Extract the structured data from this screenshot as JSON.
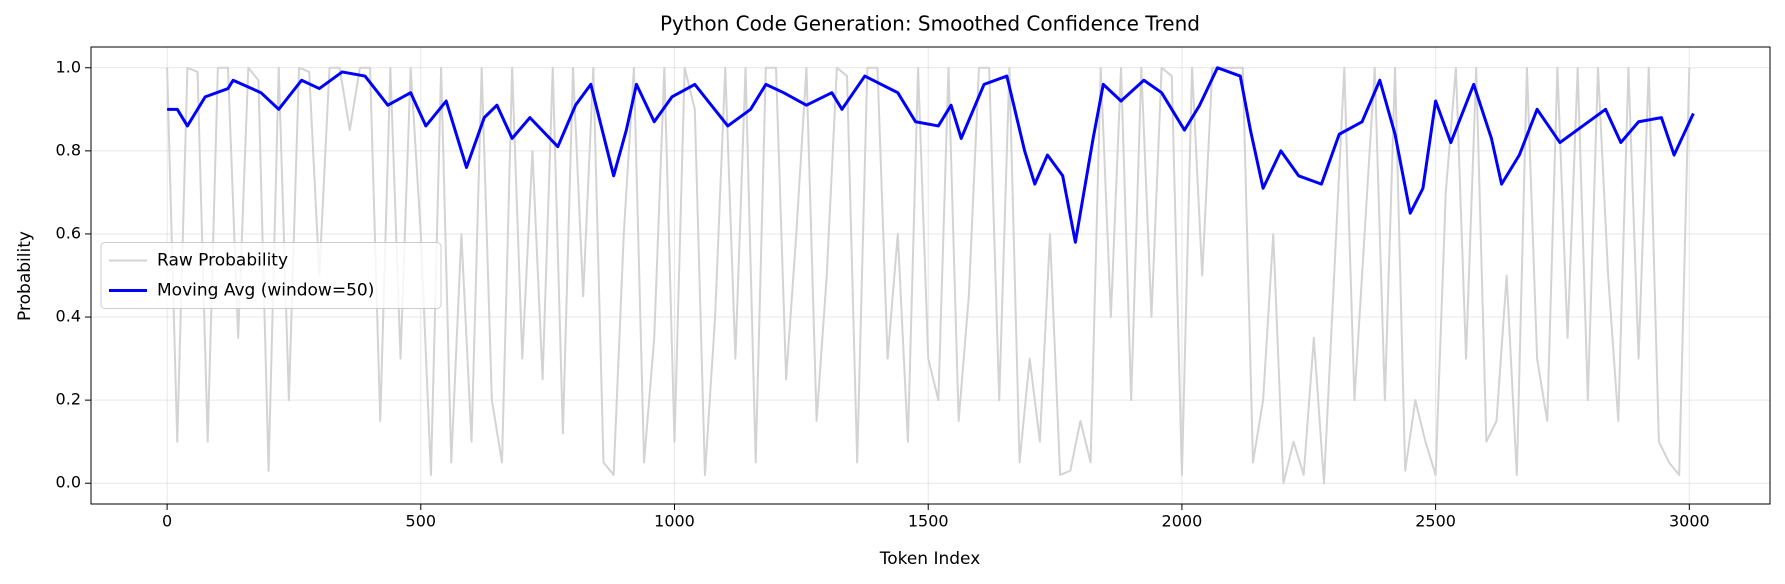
{
  "chart_data": {
    "type": "line",
    "title": "Python Code Generation: Smoothed Confidence Trend",
    "x_label": "Token Index",
    "y_label": "Probability",
    "xlim": [
      -150,
      3159
    ],
    "ylim": [
      -0.05,
      1.05
    ],
    "xticks": [
      0,
      500,
      1000,
      1500,
      2000,
      2500,
      3000
    ],
    "yticks": [
      {
        "value": 0,
        "label": "0.0"
      },
      0.2,
      0.4,
      0.6,
      0.8,
      {
        "value": 1,
        "label": "1.0"
      }
    ],
    "grid": true,
    "legend": "center left",
    "series": [
      {
        "name": "Raw Probability",
        "color": "#d3d3d3",
        "x": [
          0,
          20,
          40,
          60,
          80,
          100,
          120,
          140,
          160,
          180,
          200,
          220,
          240,
          260,
          280,
          300,
          320,
          340,
          360,
          380,
          400,
          420,
          440,
          460,
          480,
          500,
          520,
          540,
          560,
          580,
          600,
          620,
          640,
          660,
          680,
          700,
          720,
          740,
          760,
          780,
          800,
          820,
          840,
          860,
          880,
          900,
          920,
          940,
          960,
          980,
          1000,
          1020,
          1040,
          1060,
          1080,
          1100,
          1120,
          1140,
          1160,
          1180,
          1200,
          1220,
          1240,
          1260,
          1280,
          1300,
          1320,
          1340,
          1360,
          1380,
          1400,
          1420,
          1440,
          1460,
          1480,
          1500,
          1520,
          1540,
          1560,
          1580,
          1600,
          1620,
          1640,
          1660,
          1680,
          1700,
          1720,
          1740,
          1760,
          1780,
          1800,
          1820,
          1840,
          1860,
          1880,
          1900,
          1920,
          1940,
          1960,
          1980,
          2000,
          2020,
          2040,
          2060,
          2080,
          2100,
          2120,
          2140,
          2160,
          2180,
          2200,
          2220,
          2240,
          2260,
          2280,
          2300,
          2320,
          2340,
          2360,
          2380,
          2400,
          2420,
          2440,
          2460,
          2480,
          2500,
          2520,
          2540,
          2560,
          2580,
          2600,
          2620,
          2640,
          2660,
          2680,
          2700,
          2720,
          2740,
          2760,
          2780,
          2800,
          2820,
          2840,
          2860,
          2880,
          2900,
          2920,
          2940,
          2960,
          2980,
          3000
        ],
        "values": [
          1,
          0.1,
          1,
          0.99,
          0.1,
          1,
          1,
          0.35,
          1,
          0.97,
          0.03,
          1,
          0.2,
          1,
          0.99,
          0.5,
          1,
          1,
          0.85,
          1,
          1,
          0.15,
          1,
          0.3,
          1,
          0.6,
          0.02,
          1,
          0.05,
          0.6,
          0.1,
          1,
          0.2,
          0.05,
          1,
          0.3,
          0.8,
          0.25,
          1,
          0.12,
          1,
          0.45,
          1,
          0.05,
          0.02,
          0.6,
          1,
          0.05,
          0.35,
          1,
          0.1,
          1,
          0.9,
          0.02,
          0.4,
          1,
          0.3,
          1,
          0.05,
          1,
          1,
          0.25,
          0.6,
          1,
          0.15,
          0.5,
          1,
          0.98,
          0.05,
          1,
          1,
          0.3,
          0.6,
          0.1,
          1,
          0.3,
          0.2,
          1,
          0.15,
          0.45,
          1,
          1,
          0.2,
          1,
          0.05,
          0.3,
          0.1,
          0.6,
          0.02,
          0.03,
          0.15,
          0.05,
          1,
          0.4,
          1,
          0.2,
          1,
          0.4,
          1,
          0.98,
          0.02,
          1,
          0.5,
          1,
          1,
          1,
          1,
          0.05,
          0.2,
          0.6,
          0,
          0.1,
          0.02,
          0.35,
          0,
          0.5,
          1,
          0.2,
          0.6,
          1,
          0.2,
          1,
          0.03,
          0.2,
          0.1,
          0.02,
          0.7,
          1,
          0.3,
          1,
          0.1,
          0.15,
          0.5,
          0.02,
          1,
          0.3,
          0.15,
          1,
          0.35,
          1,
          0.2,
          1,
          0.5,
          0.15,
          1,
          0.3,
          1,
          0.1,
          0.05,
          0.02,
          1
        ]
      },
      {
        "name": "Moving Avg (window=50)",
        "color": "#0000ff",
        "x": [
          0,
          20,
          40,
          75,
          120,
          130,
          185,
          220,
          265,
          300,
          345,
          390,
          435,
          480,
          510,
          550,
          590,
          625,
          650,
          680,
          715,
          770,
          805,
          835,
          880,
          905,
          925,
          960,
          995,
          1040,
          1105,
          1150,
          1180,
          1215,
          1260,
          1310,
          1330,
          1375,
          1440,
          1475,
          1520,
          1545,
          1565,
          1610,
          1655,
          1690,
          1710,
          1735,
          1765,
          1790,
          1825,
          1845,
          1880,
          1925,
          1960,
          2005,
          2035,
          2070,
          2115,
          2135,
          2160,
          2195,
          2230,
          2275,
          2310,
          2355,
          2390,
          2420,
          2450,
          2475,
          2500,
          2530,
          2575,
          2610,
          2630,
          2665,
          2700,
          2745,
          2790,
          2835,
          2865,
          2900,
          2945,
          2970,
          3008
        ],
        "values": [
          0.9,
          0.9,
          0.86,
          0.93,
          0.95,
          0.97,
          0.94,
          0.9,
          0.97,
          0.95,
          0.99,
          0.98,
          0.91,
          0.94,
          0.86,
          0.92,
          0.76,
          0.88,
          0.91,
          0.83,
          0.88,
          0.81,
          0.91,
          0.96,
          0.74,
          0.85,
          0.96,
          0.87,
          0.93,
          0.96,
          0.86,
          0.9,
          0.96,
          0.94,
          0.91,
          0.94,
          0.9,
          0.98,
          0.94,
          0.87,
          0.86,
          0.91,
          0.83,
          0.96,
          0.98,
          0.8,
          0.72,
          0.79,
          0.74,
          0.58,
          0.83,
          0.96,
          0.92,
          0.97,
          0.94,
          0.85,
          0.91,
          1,
          0.98,
          0.85,
          0.71,
          0.8,
          0.74,
          0.72,
          0.84,
          0.87,
          0.97,
          0.84,
          0.65,
          0.71,
          0.92,
          0.82,
          0.96,
          0.83,
          0.72,
          0.79,
          0.9,
          0.82,
          0.86,
          0.9,
          0.82,
          0.87,
          0.88,
          0.79,
          0.89
        ]
      }
    ]
  }
}
